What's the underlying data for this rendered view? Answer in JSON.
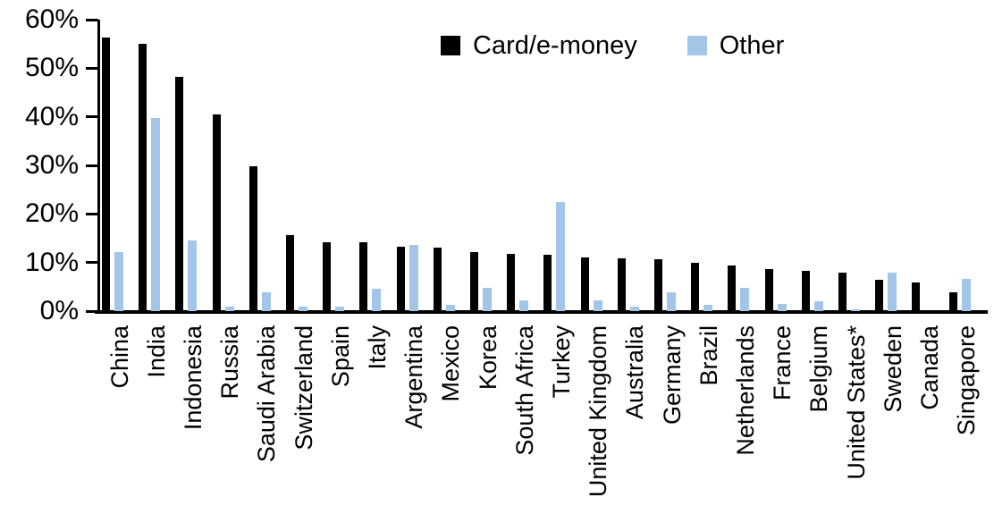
{
  "chart_data": {
    "type": "bar",
    "title": "",
    "xlabel": "",
    "ylabel": "",
    "ylim": [
      0,
      60
    ],
    "ytick_labels": [
      "0%",
      "10%",
      "20%",
      "30%",
      "40%",
      "50%",
      "60%"
    ],
    "ytick_values": [
      0,
      10,
      20,
      30,
      40,
      50,
      60
    ],
    "grid": false,
    "legend_position": "top-center",
    "categories": [
      "China",
      "India",
      "Indonesia",
      "Russia",
      "Saudi Arabia",
      "Switzerland",
      "Spain",
      "Italy",
      "Argentina",
      "Mexico",
      "Korea",
      "South Africa",
      "Turkey",
      "United Kingdom",
      "Australia",
      "Germany",
      "Brazil",
      "Netherlands",
      "France",
      "Belgium",
      "United States*",
      "Sweden",
      "Canada",
      "Singapore"
    ],
    "series": [
      {
        "name": "Card/e-money",
        "color": "#000000",
        "values": [
          56.3,
          55.1,
          48.3,
          40.5,
          29.8,
          15.7,
          14.2,
          14.1,
          13.3,
          13.0,
          12.2,
          11.7,
          11.6,
          11.0,
          10.8,
          10.6,
          10.0,
          9.3,
          8.7,
          8.2,
          7.9,
          6.5,
          5.9,
          3.9
        ]
      },
      {
        "name": "Other",
        "color": "#A3C6E8",
        "values": [
          12.2,
          39.8,
          14.5,
          1.0,
          3.9,
          0.9,
          1.0,
          4.6,
          13.7,
          1.3,
          4.7,
          2.3,
          22.5,
          2.3,
          1.0,
          3.9,
          1.2,
          4.8,
          1.5,
          2.0,
          0.3,
          8.0,
          0.0,
          6.7
        ]
      }
    ]
  },
  "legend": {
    "card_label": "Card/e-money",
    "other_label": "Other"
  },
  "colors": {
    "card": "#000000",
    "other": "#A3C6E8",
    "axis": "#000000",
    "background": "#ffffff"
  }
}
